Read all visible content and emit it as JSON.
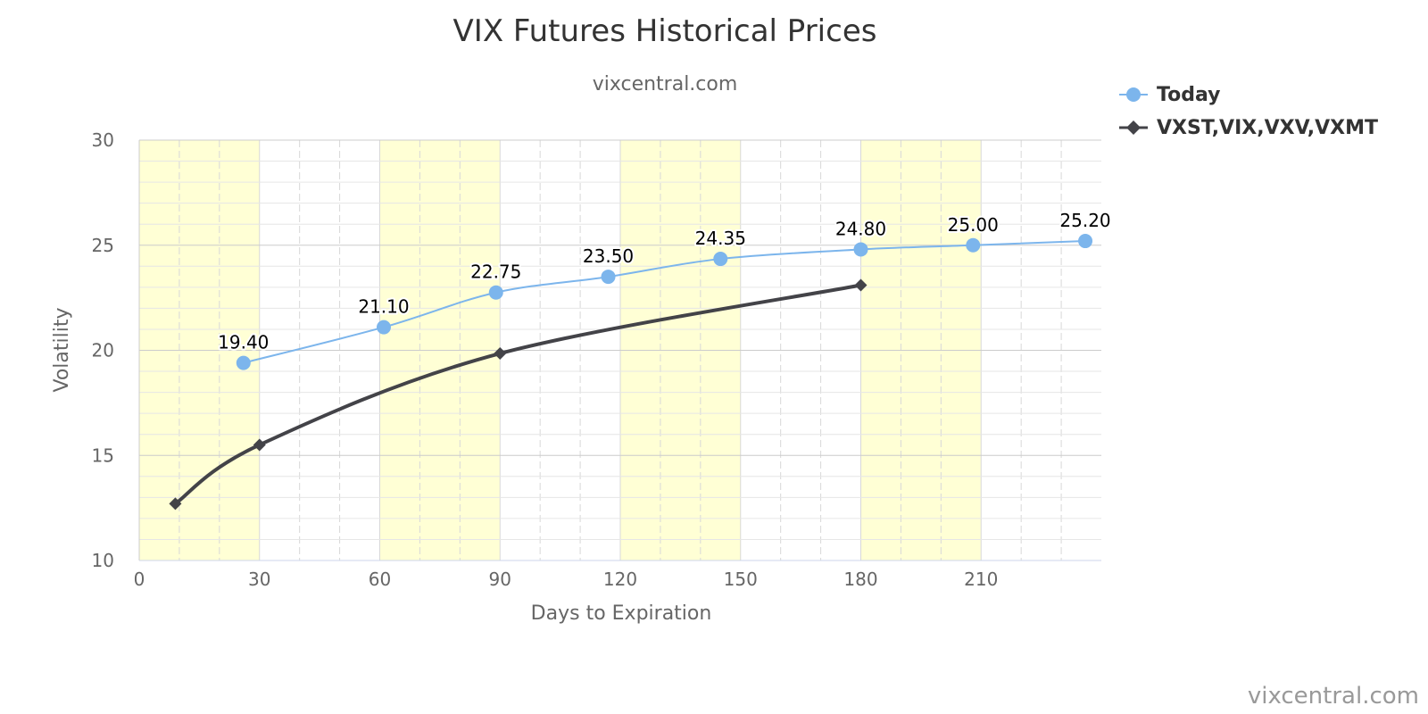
{
  "chart_data": {
    "type": "line",
    "title": "VIX Futures Historical Prices",
    "subtitle": "vixcentral.com",
    "xlabel": "Days to Expiration",
    "ylabel": "Volatility",
    "xlim": [
      0,
      240
    ],
    "ylim": [
      10,
      30
    ],
    "x_ticks": [
      0,
      30,
      60,
      90,
      120,
      150,
      180,
      210
    ],
    "y_ticks": [
      10,
      15,
      20,
      25,
      30
    ],
    "grid": true,
    "legend_position": "top-right",
    "highlight_bands": [
      [
        0,
        30
      ],
      [
        60,
        90
      ],
      [
        120,
        150
      ],
      [
        180,
        210
      ]
    ],
    "highlight_color": "#ffffd5",
    "series": [
      {
        "name": "Today",
        "color": "#7cb5ec",
        "marker": "circle",
        "data_labels": true,
        "points": [
          {
            "x": 26,
            "y": 19.4,
            "label": "19.40"
          },
          {
            "x": 61,
            "y": 21.1,
            "label": "21.10"
          },
          {
            "x": 89,
            "y": 22.75,
            "label": "22.75"
          },
          {
            "x": 117,
            "y": 23.5,
            "label": "23.50"
          },
          {
            "x": 145,
            "y": 24.35,
            "label": "24.35"
          },
          {
            "x": 180,
            "y": 24.8,
            "label": "24.80"
          },
          {
            "x": 208,
            "y": 25.0,
            "label": "25.00"
          },
          {
            "x": 236,
            "y": 25.2,
            "label": "25.20"
          }
        ]
      },
      {
        "name": "VXST,VIX,VXV,VXMT",
        "color": "#434348",
        "marker": "diamond",
        "data_labels": false,
        "points": [
          {
            "x": 9,
            "y": 12.7
          },
          {
            "x": 30,
            "y": 15.5
          },
          {
            "x": 90,
            "y": 19.85
          },
          {
            "x": 180,
            "y": 23.1
          }
        ]
      }
    ],
    "credit": "vixcentral.com"
  }
}
